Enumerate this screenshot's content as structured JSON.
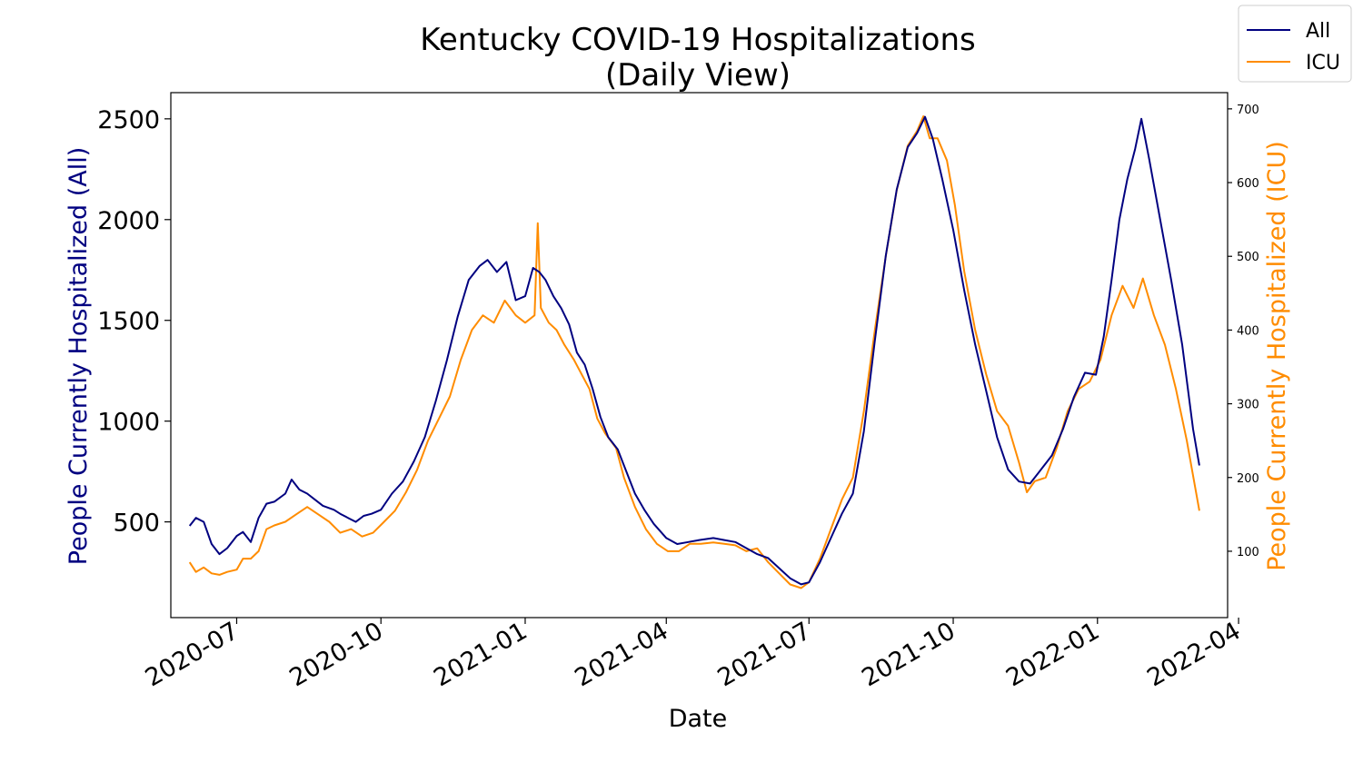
{
  "chart_data": {
    "type": "line",
    "title": "Kentucky COVID-19 Hospitalizations",
    "subtitle": "(Daily View)",
    "xlabel": "Date",
    "ylabel_left": "People Currently Hospitalized (All)",
    "ylabel_right": "People Currently Hospitalized (ICU)",
    "x_range": [
      "2020-05-20",
      "2022-03-25"
    ],
    "ylim_left": [
      25,
      2630
    ],
    "ylim_right": [
      10,
      722
    ],
    "x_ticks": [
      {
        "date": "2020-07-01",
        "label": "2020-07"
      },
      {
        "date": "2020-10-01",
        "label": "2020-10"
      },
      {
        "date": "2021-01-01",
        "label": "2021-01"
      },
      {
        "date": "2021-04-01",
        "label": "2021-04"
      },
      {
        "date": "2021-07-01",
        "label": "2021-07"
      },
      {
        "date": "2021-10-01",
        "label": "2021-10"
      },
      {
        "date": "2022-01-01",
        "label": "2022-01"
      },
      {
        "date": "2022-04-01",
        "label": "2022-04"
      }
    ],
    "y_ticks_left": [
      500,
      1000,
      1500,
      2000,
      2500
    ],
    "y_ticks_right": [
      100,
      200,
      300,
      400,
      500,
      600,
      700
    ],
    "legend_position": "top-right",
    "series": [
      {
        "name": "All",
        "axis": "left",
        "color": "#000080",
        "points": [
          [
            "2020-06-01",
            480
          ],
          [
            "2020-06-05",
            520
          ],
          [
            "2020-06-10",
            500
          ],
          [
            "2020-06-15",
            390
          ],
          [
            "2020-06-20",
            340
          ],
          [
            "2020-06-25",
            370
          ],
          [
            "2020-07-01",
            430
          ],
          [
            "2020-07-05",
            450
          ],
          [
            "2020-07-10",
            400
          ],
          [
            "2020-07-15",
            520
          ],
          [
            "2020-07-20",
            590
          ],
          [
            "2020-07-25",
            600
          ],
          [
            "2020-08-01",
            640
          ],
          [
            "2020-08-05",
            710
          ],
          [
            "2020-08-10",
            660
          ],
          [
            "2020-08-15",
            640
          ],
          [
            "2020-08-20",
            610
          ],
          [
            "2020-08-25",
            580
          ],
          [
            "2020-09-01",
            560
          ],
          [
            "2020-09-05",
            540
          ],
          [
            "2020-09-10",
            520
          ],
          [
            "2020-09-15",
            500
          ],
          [
            "2020-09-20",
            530
          ],
          [
            "2020-09-25",
            540
          ],
          [
            "2020-10-01",
            560
          ],
          [
            "2020-10-08",
            640
          ],
          [
            "2020-10-15",
            700
          ],
          [
            "2020-10-22",
            800
          ],
          [
            "2020-10-29",
            920
          ],
          [
            "2020-11-05",
            1100
          ],
          [
            "2020-11-12",
            1300
          ],
          [
            "2020-11-19",
            1520
          ],
          [
            "2020-11-26",
            1700
          ],
          [
            "2020-12-03",
            1770
          ],
          [
            "2020-12-08",
            1800
          ],
          [
            "2020-12-14",
            1740
          ],
          [
            "2020-12-20",
            1790
          ],
          [
            "2020-12-26",
            1600
          ],
          [
            "2021-01-01",
            1620
          ],
          [
            "2021-01-06",
            1760
          ],
          [
            "2021-01-10",
            1740
          ],
          [
            "2021-01-14",
            1700
          ],
          [
            "2021-01-19",
            1620
          ],
          [
            "2021-01-24",
            1560
          ],
          [
            "2021-01-29",
            1480
          ],
          [
            "2021-02-03",
            1340
          ],
          [
            "2021-02-08",
            1280
          ],
          [
            "2021-02-13",
            1160
          ],
          [
            "2021-02-18",
            1020
          ],
          [
            "2021-02-23",
            920
          ],
          [
            "2021-03-01",
            860
          ],
          [
            "2021-03-06",
            760
          ],
          [
            "2021-03-12",
            640
          ],
          [
            "2021-03-18",
            560
          ],
          [
            "2021-03-24",
            490
          ],
          [
            "2021-04-01",
            420
          ],
          [
            "2021-04-08",
            390
          ],
          [
            "2021-04-15",
            400
          ],
          [
            "2021-04-22",
            410
          ],
          [
            "2021-05-01",
            420
          ],
          [
            "2021-05-08",
            410
          ],
          [
            "2021-05-15",
            400
          ],
          [
            "2021-05-22",
            370
          ],
          [
            "2021-05-29",
            340
          ],
          [
            "2021-06-05",
            320
          ],
          [
            "2021-06-12",
            270
          ],
          [
            "2021-06-19",
            220
          ],
          [
            "2021-06-26",
            190
          ],
          [
            "2021-07-01",
            200
          ],
          [
            "2021-07-08",
            300
          ],
          [
            "2021-07-15",
            420
          ],
          [
            "2021-07-22",
            540
          ],
          [
            "2021-07-29",
            640
          ],
          [
            "2021-08-05",
            950
          ],
          [
            "2021-08-12",
            1400
          ],
          [
            "2021-08-19",
            1820
          ],
          [
            "2021-08-26",
            2150
          ],
          [
            "2021-09-02",
            2360
          ],
          [
            "2021-09-08",
            2430
          ],
          [
            "2021-09-13",
            2510
          ],
          [
            "2021-09-18",
            2400
          ],
          [
            "2021-09-24",
            2200
          ],
          [
            "2021-10-01",
            1950
          ],
          [
            "2021-10-08",
            1650
          ],
          [
            "2021-10-15",
            1380
          ],
          [
            "2021-10-22",
            1150
          ],
          [
            "2021-10-29",
            920
          ],
          [
            "2021-11-05",
            760
          ],
          [
            "2021-11-12",
            700
          ],
          [
            "2021-11-19",
            690
          ],
          [
            "2021-11-26",
            760
          ],
          [
            "2021-12-03",
            830
          ],
          [
            "2021-12-10",
            960
          ],
          [
            "2021-12-17",
            1120
          ],
          [
            "2021-12-24",
            1240
          ],
          [
            "2021-12-31",
            1230
          ],
          [
            "2022-01-05",
            1420
          ],
          [
            "2022-01-10",
            1700
          ],
          [
            "2022-01-15",
            2000
          ],
          [
            "2022-01-20",
            2200
          ],
          [
            "2022-01-25",
            2350
          ],
          [
            "2022-01-29",
            2500
          ],
          [
            "2022-02-03",
            2300
          ],
          [
            "2022-02-10",
            2000
          ],
          [
            "2022-02-17",
            1700
          ],
          [
            "2022-02-24",
            1380
          ],
          [
            "2022-03-03",
            960
          ],
          [
            "2022-03-07",
            780
          ]
        ]
      },
      {
        "name": "ICU",
        "axis": "right",
        "color": "#ff8c00",
        "points": [
          [
            "2020-06-01",
            85
          ],
          [
            "2020-06-05",
            72
          ],
          [
            "2020-06-10",
            78
          ],
          [
            "2020-06-15",
            70
          ],
          [
            "2020-06-20",
            68
          ],
          [
            "2020-06-25",
            72
          ],
          [
            "2020-07-01",
            75
          ],
          [
            "2020-07-05",
            90
          ],
          [
            "2020-07-10",
            90
          ],
          [
            "2020-07-15",
            100
          ],
          [
            "2020-07-20",
            130
          ],
          [
            "2020-07-25",
            135
          ],
          [
            "2020-08-01",
            140
          ],
          [
            "2020-08-08",
            150
          ],
          [
            "2020-08-15",
            160
          ],
          [
            "2020-08-22",
            150
          ],
          [
            "2020-08-29",
            140
          ],
          [
            "2020-09-05",
            125
          ],
          [
            "2020-09-12",
            130
          ],
          [
            "2020-09-19",
            120
          ],
          [
            "2020-09-26",
            125
          ],
          [
            "2020-10-03",
            140
          ],
          [
            "2020-10-10",
            155
          ],
          [
            "2020-10-17",
            180
          ],
          [
            "2020-10-24",
            210
          ],
          [
            "2020-10-31",
            250
          ],
          [
            "2020-11-07",
            280
          ],
          [
            "2020-11-14",
            310
          ],
          [
            "2020-11-21",
            360
          ],
          [
            "2020-11-28",
            400
          ],
          [
            "2020-12-05",
            420
          ],
          [
            "2020-12-12",
            410
          ],
          [
            "2020-12-19",
            440
          ],
          [
            "2020-12-26",
            420
          ],
          [
            "2021-01-01",
            410
          ],
          [
            "2021-01-07",
            420
          ],
          [
            "2021-01-09",
            545
          ],
          [
            "2021-01-11",
            430
          ],
          [
            "2021-01-16",
            410
          ],
          [
            "2021-01-21",
            400
          ],
          [
            "2021-01-26",
            380
          ],
          [
            "2021-02-01",
            360
          ],
          [
            "2021-02-06",
            340
          ],
          [
            "2021-02-11",
            320
          ],
          [
            "2021-02-16",
            280
          ],
          [
            "2021-02-21",
            260
          ],
          [
            "2021-02-28",
            240
          ],
          [
            "2021-03-05",
            200
          ],
          [
            "2021-03-12",
            160
          ],
          [
            "2021-03-19",
            130
          ],
          [
            "2021-03-26",
            110
          ],
          [
            "2021-04-02",
            100
          ],
          [
            "2021-04-09",
            100
          ],
          [
            "2021-04-16",
            110
          ],
          [
            "2021-04-23",
            110
          ],
          [
            "2021-05-01",
            112
          ],
          [
            "2021-05-08",
            110
          ],
          [
            "2021-05-15",
            108
          ],
          [
            "2021-05-22",
            100
          ],
          [
            "2021-05-29",
            104
          ],
          [
            "2021-06-05",
            85
          ],
          [
            "2021-06-12",
            70
          ],
          [
            "2021-06-19",
            55
          ],
          [
            "2021-06-26",
            50
          ],
          [
            "2021-07-01",
            58
          ],
          [
            "2021-07-08",
            90
          ],
          [
            "2021-07-15",
            130
          ],
          [
            "2021-07-22",
            170
          ],
          [
            "2021-07-29",
            200
          ],
          [
            "2021-08-05",
            290
          ],
          [
            "2021-08-12",
            400
          ],
          [
            "2021-08-19",
            500
          ],
          [
            "2021-08-26",
            590
          ],
          [
            "2021-09-02",
            650
          ],
          [
            "2021-09-08",
            670
          ],
          [
            "2021-09-12",
            690
          ],
          [
            "2021-09-16",
            660
          ],
          [
            "2021-09-21",
            660
          ],
          [
            "2021-09-27",
            630
          ],
          [
            "2021-10-02",
            570
          ],
          [
            "2021-10-08",
            480
          ],
          [
            "2021-10-15",
            400
          ],
          [
            "2021-10-22",
            340
          ],
          [
            "2021-10-29",
            290
          ],
          [
            "2021-11-05",
            270
          ],
          [
            "2021-11-12",
            220
          ],
          [
            "2021-11-17",
            180
          ],
          [
            "2021-11-22",
            195
          ],
          [
            "2021-11-29",
            200
          ],
          [
            "2021-12-06",
            240
          ],
          [
            "2021-12-13",
            290
          ],
          [
            "2021-12-20",
            320
          ],
          [
            "2021-12-27",
            330
          ],
          [
            "2022-01-03",
            360
          ],
          [
            "2022-01-10",
            420
          ],
          [
            "2022-01-17",
            460
          ],
          [
            "2022-01-24",
            430
          ],
          [
            "2022-01-30",
            470
          ],
          [
            "2022-02-06",
            420
          ],
          [
            "2022-02-13",
            380
          ],
          [
            "2022-02-20",
            320
          ],
          [
            "2022-02-27",
            250
          ],
          [
            "2022-03-07",
            155
          ]
        ]
      }
    ]
  }
}
